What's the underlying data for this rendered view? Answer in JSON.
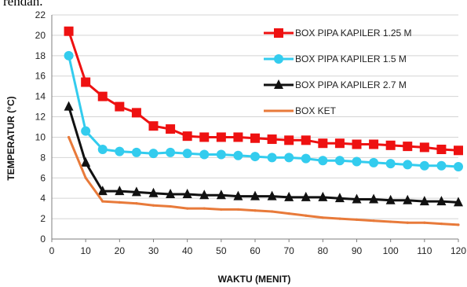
{
  "top_text": "rendah.",
  "chart_data": {
    "type": "line",
    "title": "",
    "xlabel": "WAKTU (MENIT)",
    "ylabel": "TEMPERATUR (°C)",
    "xlim": [
      0,
      120
    ],
    "ylim": [
      0,
      22
    ],
    "xticks": [
      0,
      10,
      20,
      30,
      40,
      50,
      60,
      70,
      80,
      90,
      100,
      110,
      120
    ],
    "yticks": [
      0,
      2,
      4,
      6,
      8,
      10,
      12,
      14,
      16,
      18,
      20,
      22
    ],
    "grid": "horizontal",
    "legend_position": "top-right",
    "x": [
      5,
      10,
      15,
      20,
      25,
      30,
      35,
      40,
      45,
      50,
      55,
      60,
      65,
      70,
      75,
      80,
      85,
      90,
      95,
      100,
      105,
      110,
      115,
      120
    ],
    "series": [
      {
        "name": "BOX PIPA KAPILER 1.25 M",
        "color": "#ee1111",
        "marker": "square",
        "values": [
          20.4,
          15.4,
          14.0,
          13.0,
          12.4,
          11.1,
          10.8,
          10.1,
          10.0,
          10.0,
          10.0,
          9.9,
          9.8,
          9.7,
          9.7,
          9.4,
          9.4,
          9.3,
          9.3,
          9.2,
          9.1,
          9.0,
          8.8,
          8.7
        ]
      },
      {
        "name": "BOX PIPA KAPILER 1.5 M",
        "color": "#33ccee",
        "marker": "circle",
        "values": [
          18.0,
          10.6,
          8.8,
          8.6,
          8.5,
          8.4,
          8.5,
          8.4,
          8.3,
          8.3,
          8.2,
          8.1,
          8.0,
          8.0,
          7.9,
          7.7,
          7.7,
          7.6,
          7.5,
          7.4,
          7.3,
          7.2,
          7.2,
          7.1
        ]
      },
      {
        "name": "BOX PIPA KAPILER 2.7 M",
        "color": "#111111",
        "marker": "triangle",
        "values": [
          13.0,
          7.5,
          4.7,
          4.7,
          4.6,
          4.5,
          4.4,
          4.4,
          4.3,
          4.3,
          4.2,
          4.2,
          4.2,
          4.1,
          4.1,
          4.1,
          4.0,
          3.9,
          3.9,
          3.8,
          3.8,
          3.7,
          3.7,
          3.6
        ]
      },
      {
        "name": "BOX KET",
        "color": "#e87a3a",
        "marker": "none",
        "values": [
          10.0,
          6.0,
          3.7,
          3.6,
          3.5,
          3.3,
          3.2,
          3.0,
          3.0,
          2.9,
          2.9,
          2.8,
          2.7,
          2.5,
          2.3,
          2.1,
          2.0,
          1.9,
          1.8,
          1.7,
          1.6,
          1.6,
          1.5,
          1.4
        ]
      }
    ]
  }
}
